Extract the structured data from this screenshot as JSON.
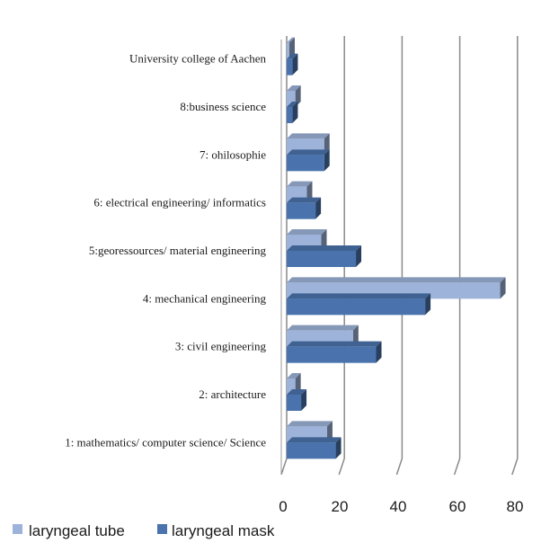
{
  "chart_data": {
    "type": "bar",
    "orientation": "horizontal",
    "three_d": true,
    "categories": [
      "1: mathematics/ computer science/ Science",
      "2: architecture",
      "3: civil engineering",
      "4: mechanical engineering",
      "5:georessources/ material engineering",
      "6: electrical engineering/ informatics",
      "7: ohilosophie",
      "8:business science",
      "University college of Aachen"
    ],
    "series": [
      {
        "name": "laryngeal tube",
        "color": "#9db3d9",
        "values": [
          14,
          3,
          23,
          74,
          12,
          7,
          13,
          3,
          0
        ]
      },
      {
        "name": "laryngeal mask",
        "color": "#4a73ad",
        "values": [
          17,
          5,
          31,
          48,
          24,
          10,
          13,
          2,
          2
        ]
      }
    ],
    "xlim": [
      0,
      80
    ],
    "xticks": [
      "0",
      "20",
      "40",
      "60",
      "80"
    ],
    "grid": true,
    "legend_position": "bottom"
  }
}
